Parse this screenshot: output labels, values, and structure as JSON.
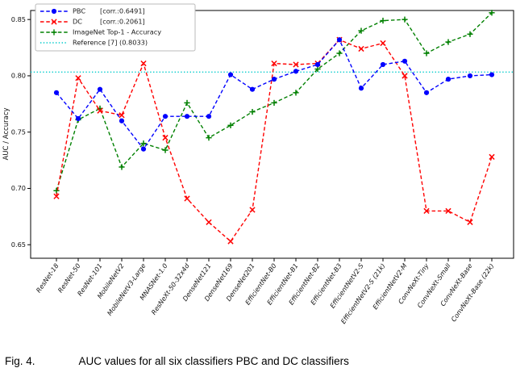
{
  "figure": {
    "caption_label": "Fig. 4.",
    "caption_text": "AUC values for all six classifiers PBC and DC classifiers"
  },
  "chart_data": {
    "type": "line",
    "title": "",
    "xlabel": "",
    "ylabel": "AUC / Accuracy",
    "grid": false,
    "legend_position": "upper-left",
    "ylim": [
      0.638,
      0.858
    ],
    "yticks": [
      0.65,
      0.7,
      0.75,
      0.8,
      0.85
    ],
    "ytick_labels": [
      "0.65",
      "0.70",
      "0.75",
      "0.80",
      "0.85"
    ],
    "categories": [
      "ResNet-18",
      "ResNet-50",
      "ResNet-101",
      "MobileNetV2",
      "MobileNetV3-Large",
      "MNASNet-1.0",
      "ResNeXt-50-32x4d",
      "DenseNet121",
      "DenseNet169",
      "DenseNet201",
      "EfficientNet-B0",
      "EfficientNet-B1",
      "EfficientNet-B2",
      "EfficientNet-B3",
      "EfficientNetV2-S",
      "EfficientNetV2-S (21k)",
      "EfficientNetV2-M",
      "ConvNeXt-Tiny",
      "ConvNeXt-Small",
      "ConvNeXt-Base",
      "ConvNeXt-Base (22k)"
    ],
    "series": [
      {
        "name": "PBC",
        "detail": "[corr.:0.6491]",
        "color": "#0000ff",
        "marker": "circle",
        "linestyle": "dashed",
        "values": [
          0.785,
          0.762,
          0.788,
          0.76,
          0.735,
          0.764,
          0.764,
          0.764,
          0.801,
          0.788,
          0.797,
          0.804,
          0.81,
          0.832,
          0.789,
          0.81,
          0.813,
          0.785,
          0.797,
          0.8,
          0.801
        ]
      },
      {
        "name": "DC",
        "detail": "[corr.:0.2061]",
        "color": "#ff0000",
        "marker": "x",
        "linestyle": "dashed",
        "values": [
          0.693,
          0.798,
          0.769,
          0.765,
          0.811,
          0.745,
          0.691,
          0.67,
          0.653,
          0.681,
          0.811,
          0.81,
          0.811,
          0.832,
          0.824,
          0.829,
          0.8,
          0.68,
          0.68,
          0.67,
          0.728
        ]
      },
      {
        "name": "ImageNet Top-1 - Accuracy",
        "detail": "",
        "color": "#008000",
        "marker": "plus",
        "linestyle": "dashed",
        "values": [
          0.698,
          0.761,
          0.771,
          0.719,
          0.74,
          0.734,
          0.776,
          0.745,
          0.756,
          0.768,
          0.776,
          0.785,
          0.806,
          0.82,
          0.84,
          0.849,
          0.85,
          0.82,
          0.83,
          0.837,
          0.856
        ]
      }
    ],
    "reference_line": {
      "label": "Reference [7] (0.8033)",
      "value": 0.8033,
      "color": "#00cccc",
      "linestyle": "dotted"
    }
  }
}
